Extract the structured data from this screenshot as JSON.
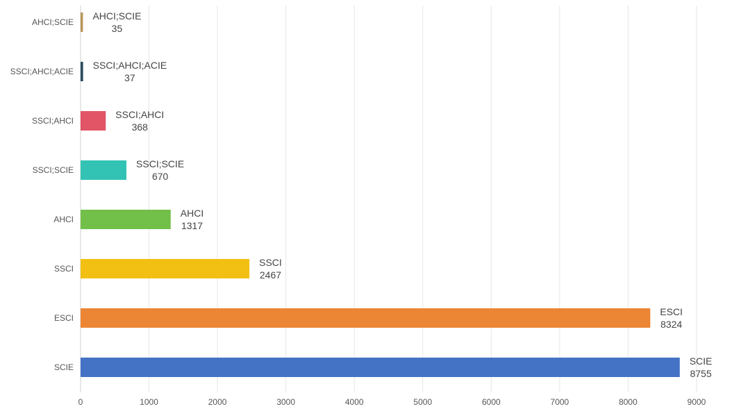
{
  "chart_data": {
    "type": "bar",
    "orientation": "horizontal",
    "categories": [
      "AHCI;SCIE",
      "SSCI;AHCI;ACIE",
      "SSCI;AHCI",
      "SSCI;SCIE",
      "AHCI",
      "SSCI",
      "ESCI",
      "SCIE"
    ],
    "values": [
      35,
      37,
      368,
      670,
      1317,
      2467,
      8324,
      8755
    ],
    "colors": [
      "#b8975a",
      "#2b4a5e",
      "#e15566",
      "#33c3b4",
      "#72bf4a",
      "#f2c012",
      "#ec8534",
      "#4472c4"
    ],
    "data_labels": [
      {
        "name": "AHCI;SCIE",
        "value": "35"
      },
      {
        "name": "SSCI;AHCI;ACIE",
        "value": "37"
      },
      {
        "name": "SSCI;AHCI",
        "value": "368"
      },
      {
        "name": "SSCI;SCIE",
        "value": "670"
      },
      {
        "name": "AHCI",
        "value": "1317"
      },
      {
        "name": "SSCI",
        "value": "2467"
      },
      {
        "name": "ESCI",
        "value": "8324"
      },
      {
        "name": "SCIE",
        "value": "8755"
      }
    ],
    "xlim": [
      0,
      9000
    ],
    "xticks": [
      0,
      1000,
      2000,
      3000,
      4000,
      5000,
      6000,
      7000,
      8000,
      9000
    ],
    "grid": "vertical",
    "legend": "none",
    "title": "",
    "xlabel": "",
    "ylabel": ""
  }
}
